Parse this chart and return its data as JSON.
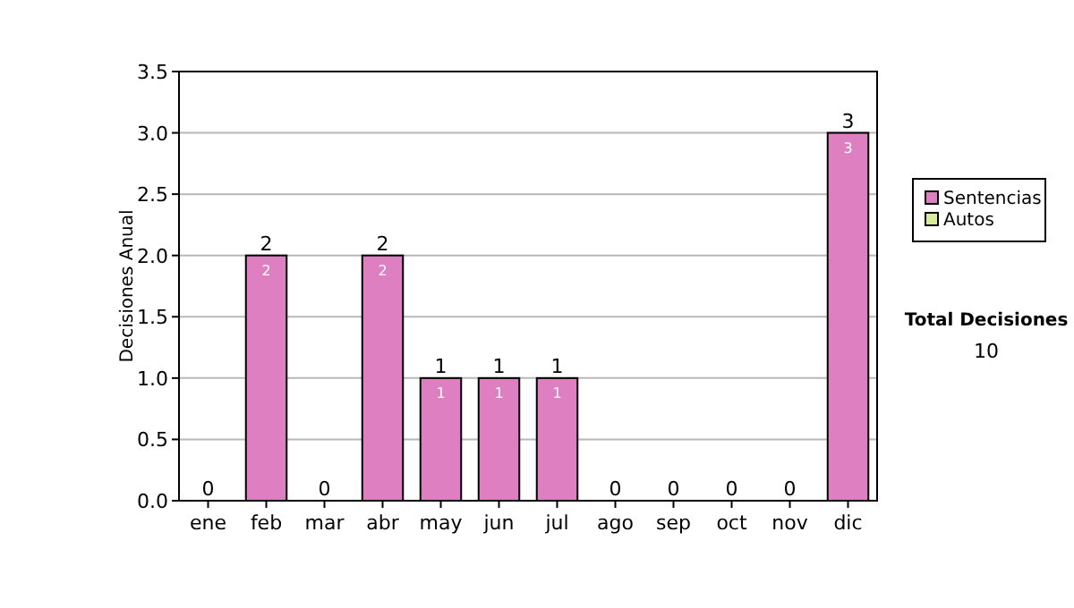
{
  "chart_data": {
    "type": "bar",
    "stacked": true,
    "ylabel": "Decisiones Anual",
    "categories": [
      "ene",
      "feb",
      "mar",
      "abr",
      "may",
      "jun",
      "jul",
      "ago",
      "sep",
      "oct",
      "nov",
      "dic"
    ],
    "series": [
      {
        "name": "Sentencias",
        "color": "#dd7fc0",
        "values": [
          0,
          2,
          0,
          2,
          1,
          1,
          1,
          0,
          0,
          0,
          0,
          3
        ],
        "value_labels": [
          null,
          "2",
          null,
          "2",
          "1",
          "1",
          "1",
          null,
          null,
          null,
          null,
          "3"
        ]
      },
      {
        "name": "Autos",
        "color": "#d4ec9c",
        "values": [
          0,
          0,
          0,
          0,
          0,
          0,
          0,
          0,
          0,
          0,
          0,
          0
        ]
      }
    ],
    "totals": [
      "0",
      "2",
      "0",
      "2",
      "1",
      "1",
      "1",
      "0",
      "0",
      "0",
      "0",
      "3"
    ],
    "ylim": [
      0,
      3.5
    ],
    "yticks": [
      {
        "value": 0,
        "label": "0.0"
      },
      {
        "value": 0.5,
        "label": "0.5"
      },
      {
        "value": 1,
        "label": "1.0"
      },
      {
        "value": 1.5,
        "label": "1.5"
      },
      {
        "value": 2,
        "label": "2.0"
      },
      {
        "value": 2.5,
        "label": "2.5"
      },
      {
        "value": 3,
        "label": "3.0"
      },
      {
        "value": 3.5,
        "label": "3.5"
      }
    ],
    "grid": "y",
    "legend": "right",
    "annotations": [
      "Total Decisiones",
      "10"
    ]
  }
}
